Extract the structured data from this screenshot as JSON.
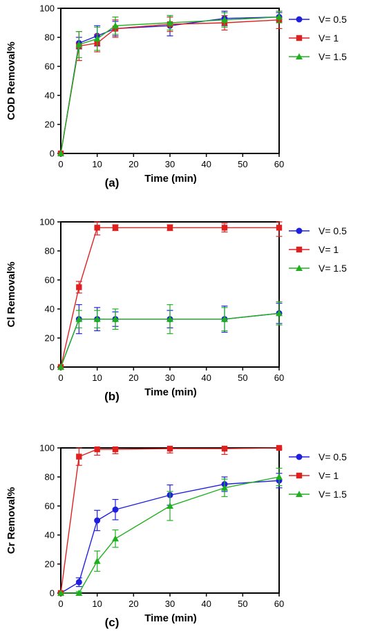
{
  "chart_data": [
    {
      "type": "line",
      "panel_label": "(a)",
      "xlabel": "Time (min)",
      "ylabel": "COD Removal%",
      "xlim": [
        0,
        60
      ],
      "ylim": [
        0,
        100
      ],
      "xticks": [
        0,
        10,
        20,
        30,
        40,
        50,
        60
      ],
      "yticks": [
        0,
        20,
        40,
        60,
        80,
        100
      ],
      "legend_position": "right",
      "x": [
        0,
        5,
        10,
        15,
        30,
        45,
        60
      ],
      "series": [
        {
          "name": "V= 0.5",
          "color": "#1f1fe0",
          "marker": "circle",
          "values": [
            0,
            76,
            81,
            86,
            88,
            93,
            94
          ],
          "errors": [
            0,
            4,
            7,
            5,
            7,
            5,
            3
          ]
        },
        {
          "name": "V= 1",
          "color": "#e01f1f",
          "marker": "square",
          "values": [
            0,
            74,
            76,
            86,
            89,
            90,
            92
          ],
          "errors": [
            0,
            10,
            6,
            6,
            5,
            5,
            6
          ]
        },
        {
          "name": "V= 1.5",
          "color": "#1fb01f",
          "marker": "triangle",
          "values": [
            0,
            75,
            79,
            88,
            90,
            92,
            94
          ],
          "errors": [
            0,
            9,
            8,
            6,
            5,
            5,
            4
          ]
        }
      ]
    },
    {
      "type": "line",
      "panel_label": "(b)",
      "xlabel": "Time (min)",
      "ylabel": "Cl Removal%",
      "xlim": [
        0,
        60
      ],
      "ylim": [
        0,
        100
      ],
      "xticks": [
        0,
        10,
        20,
        30,
        40,
        50,
        60
      ],
      "yticks": [
        0,
        20,
        40,
        60,
        80,
        100
      ],
      "legend_position": "right",
      "x": [
        0,
        5,
        10,
        15,
        30,
        45,
        60
      ],
      "series": [
        {
          "name": "V= 0.5",
          "color": "#1f1fe0",
          "marker": "circle",
          "values": [
            0,
            33,
            33,
            33,
            33,
            33,
            37
          ],
          "errors": [
            0,
            10,
            8,
            5,
            6,
            9,
            7
          ]
        },
        {
          "name": "V= 1",
          "color": "#e01f1f",
          "marker": "square",
          "values": [
            0,
            55,
            96,
            96,
            96,
            96,
            96
          ],
          "errors": [
            0,
            4,
            5,
            2,
            2,
            3,
            6
          ]
        },
        {
          "name": "V= 1.5",
          "color": "#1fb01f",
          "marker": "triangle",
          "values": [
            0,
            33,
            33,
            33,
            33,
            33,
            37
          ],
          "errors": [
            0,
            6,
            6,
            7,
            10,
            8,
            8
          ]
        }
      ]
    },
    {
      "type": "line",
      "panel_label": "(c)",
      "xlabel": "Time (min)",
      "ylabel": "Cr Removal%",
      "xlim": [
        0,
        60
      ],
      "ylim": [
        0,
        100
      ],
      "xticks": [
        0,
        10,
        20,
        30,
        40,
        50,
        60
      ],
      "yticks": [
        0,
        20,
        40,
        60,
        80,
        100
      ],
      "legend_position": "right",
      "x": [
        0,
        5,
        10,
        15,
        30,
        45,
        60
      ],
      "series": [
        {
          "name": "V= 0.5",
          "color": "#1f1fe0",
          "marker": "circle",
          "values": [
            0,
            7.5,
            50,
            57.5,
            67.5,
            75,
            77.5
          ],
          "errors": [
            0,
            3,
            7,
            7,
            7,
            5,
            5
          ]
        },
        {
          "name": "V= 1",
          "color": "#e01f1f",
          "marker": "square",
          "values": [
            0,
            94,
            99,
            99,
            99.5,
            99.5,
            100
          ],
          "errors": [
            0,
            6,
            4,
            3,
            3,
            4,
            1
          ]
        },
        {
          "name": "V= 1.5",
          "color": "#1fb01f",
          "marker": "triangle",
          "values": [
            0,
            0,
            22,
            37.5,
            60,
            72.5,
            80
          ],
          "errors": [
            0,
            1,
            7,
            6,
            10,
            6,
            6
          ]
        }
      ]
    }
  ]
}
